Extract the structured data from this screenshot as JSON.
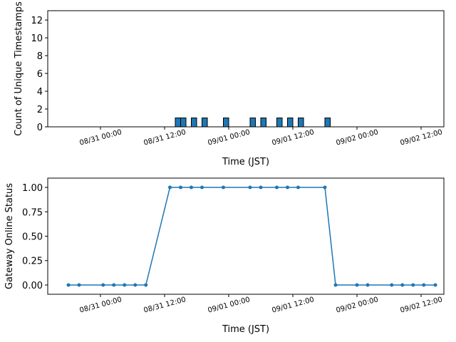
{
  "chart_data": [
    {
      "type": "bar",
      "xlabel": "Time (JST)",
      "ylabel": "Count of Unique Timestamps",
      "color": "#1f77b4",
      "edgecolor": "#000000",
      "x": [
        "08/31 14:00",
        "08/31 15:00",
        "08/31 17:00",
        "08/31 19:00",
        "08/31 23:00",
        "09/01 04:00",
        "09/01 06:00",
        "09/01 09:00",
        "09/01 11:00",
        "09/01 13:00",
        "09/01 18:00"
      ],
      "values": [
        1,
        1,
        1,
        1,
        1,
        1,
        1,
        1,
        1,
        1,
        1
      ],
      "xlim": [
        "08/30 14:08",
        "09/02 16:16"
      ],
      "xticks": [
        "08/31 00:00",
        "08/31 12:00",
        "09/01 00:00",
        "09/01 12:00",
        "09/02 00:00",
        "09/02 12:00"
      ],
      "ylim": [
        0,
        13.05
      ],
      "yticks": [
        0,
        2,
        4,
        6,
        8,
        10,
        12
      ]
    },
    {
      "type": "line",
      "xlabel": "Time (JST)",
      "ylabel": "Gateway Online Status",
      "color": "#1f77b4",
      "x": [
        "08/30 18:00",
        "08/30 20:00",
        "08/31 00:30",
        "08/31 02:30",
        "08/31 04:30",
        "08/31 06:30",
        "08/31 08:30",
        "08/31 13:00",
        "08/31 15:00",
        "08/31 17:00",
        "08/31 19:00",
        "08/31 23:00",
        "09/01 04:00",
        "09/01 06:00",
        "09/01 09:00",
        "09/01 11:00",
        "09/01 13:00",
        "09/01 18:00",
        "09/01 20:00",
        "09/02 00:00",
        "09/02 02:00",
        "09/02 06:30",
        "09/02 08:30",
        "09/02 10:30",
        "09/02 12:30",
        "09/02 14:40"
      ],
      "values": [
        0,
        0,
        0,
        0,
        0,
        0,
        0,
        1,
        1,
        1,
        1,
        1,
        1,
        1,
        1,
        1,
        1,
        1,
        0,
        0,
        0,
        0,
        0,
        0,
        0,
        0
      ],
      "xlim": [
        "08/30 14:08",
        "09/02 16:16"
      ],
      "xticks": [
        "08/31 00:00",
        "08/31 12:00",
        "09/01 00:00",
        "09/01 12:00",
        "09/02 00:00",
        "09/02 12:00"
      ],
      "ylim": [
        -0.095,
        1.095
      ],
      "yticks": [
        {
          "value": 0,
          "label": "0.00"
        },
        {
          "value": 0.25,
          "label": "0.25"
        },
        {
          "value": 0.5,
          "label": "0.50"
        },
        {
          "value": 0.75,
          "label": "0.75"
        },
        {
          "value": 1,
          "label": "1.00"
        }
      ]
    }
  ]
}
